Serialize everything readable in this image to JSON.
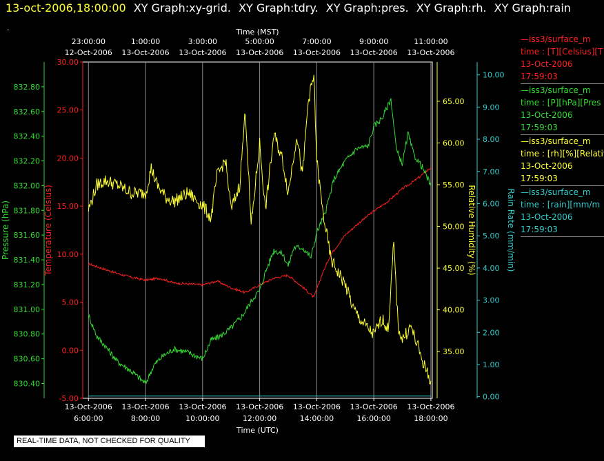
{
  "header": {
    "timestamp": "13-oct-2006,18:00:00",
    "graph_titles": [
      "XY Graph:xy-grid.",
      "XY Graph:tdry.",
      "XY Graph:pres.",
      "XY Graph:rh.",
      "XY Graph:rain"
    ],
    "dot": "."
  },
  "badge": {
    "text": "REAL-TIME DATA, NOT CHECKED FOR QUALITY"
  },
  "legend": [
    {
      "line1": "—iss3/surface_m",
      "line2": "time : [T][Celsius][T",
      "line3": "13-Oct-2006",
      "line4": "17:59:03",
      "color": "#ff2020"
    },
    {
      "line1": "—iss3/surface_m",
      "line2": "time : [P][hPa][Pres",
      "line3": "13-Oct-2006",
      "line4": "17:59:03",
      "color": "#33dd33"
    },
    {
      "line1": "—iss3/surface_m",
      "line2": "time : [rh][%][Relativ",
      "line3": "13-Oct-2006",
      "line4": "17:59:03",
      "color": "#ffff33"
    },
    {
      "line1": "—iss3/surface_m",
      "line2": "time : [rain][mm/m",
      "line3": "13-Oct-2006",
      "line4": "17:59:03",
      "color": "#33cccc"
    }
  ],
  "chart_data": {
    "type": "line",
    "x_unit": "UTC hour, 13-Oct-2006",
    "xlim": [
      5.8,
      18.05
    ],
    "top_axis": {
      "label": "Time (MST)",
      "ticks": [
        {
          "x": 6,
          "time": "23:00:00",
          "date": "12-Oct-2006"
        },
        {
          "x": 8,
          "time": "1:00:00",
          "date": "13-Oct-2006"
        },
        {
          "x": 10,
          "time": "3:00:00",
          "date": "13-Oct-2006"
        },
        {
          "x": 12,
          "time": "5:00:00",
          "date": "13-Oct-2006"
        },
        {
          "x": 14,
          "time": "7:00:00",
          "date": "13-Oct-2006"
        },
        {
          "x": 16,
          "time": "9:00:00",
          "date": "13-Oct-2006"
        },
        {
          "x": 18,
          "time": "11:00:00",
          "date": "13-Oct-2006"
        }
      ]
    },
    "bottom_axis": {
      "label": "Time (UTC)",
      "ticks": [
        {
          "x": 6,
          "date": "13-Oct-2006",
          "time": "6:00:00"
        },
        {
          "x": 8,
          "date": "13-Oct-2006",
          "time": "8:00:00"
        },
        {
          "x": 10,
          "date": "13-Oct-2006",
          "time": "10:00:00"
        },
        {
          "x": 12,
          "date": "13-Oct-2006",
          "time": "12:00:00"
        },
        {
          "x": 14,
          "date": "13-Oct-2006",
          "time": "14:00:00"
        },
        {
          "x": 16,
          "date": "13-Oct-2006",
          "time": "16:00:00"
        },
        {
          "x": 18,
          "date": "13-Oct-2006",
          "time": "18:00:00"
        }
      ]
    },
    "axes": {
      "pressure": {
        "label": "Pressure (hPa)",
        "color": "#33dd33",
        "ylim": [
          830.28,
          833.0
        ],
        "ticks": [
          "830.40",
          "830.60",
          "830.80",
          "831.00",
          "831.20",
          "831.40",
          "831.60",
          "831.80",
          "832.00",
          "832.20",
          "832.40",
          "832.60",
          "832.80"
        ]
      },
      "temperature": {
        "label": "Temperature (Celsius)",
        "color": "#ff2020",
        "ylim": [
          -5,
          30
        ],
        "ticks": [
          "-5.00",
          "0.00",
          "5.00",
          "10.00",
          "15.00",
          "20.00",
          "25.00",
          "30.00"
        ]
      },
      "humidity": {
        "label": "Relative Humidity (%)",
        "color": "#ffff33",
        "ylim": [
          29.4,
          69.7
        ],
        "ticks": [
          "35.00",
          "40.00",
          "45.00",
          "50.00",
          "55.00",
          "60.00",
          "65.00"
        ]
      },
      "rain": {
        "label": "Rain Rate (mm/min)",
        "color": "#33cccc",
        "ylim": [
          -0.05,
          10.4
        ],
        "ticks": [
          "0.00",
          "1.00",
          "2.00",
          "3.00",
          "4.00",
          "5.00",
          "6.00",
          "7.00",
          "8.00",
          "9.00",
          "10.00"
        ]
      }
    },
    "series": [
      {
        "name": "Temperature",
        "axis": "temperature",
        "color": "#ff2020",
        "x": [
          6.0,
          6.5,
          7.0,
          7.5,
          8.0,
          8.5,
          9.0,
          9.5,
          10.0,
          10.5,
          11.0,
          11.5,
          12.0,
          12.5,
          13.0,
          13.5,
          13.9,
          14.2,
          14.5,
          15.0,
          15.5,
          16.0,
          16.5,
          17.0,
          17.5,
          18.0
        ],
        "y": [
          9.0,
          8.5,
          8.0,
          7.6,
          7.3,
          7.5,
          7.0,
          6.9,
          6.8,
          7.2,
          6.5,
          6.0,
          6.8,
          7.5,
          7.8,
          6.6,
          5.5,
          8.0,
          10.0,
          12.0,
          13.3,
          14.5,
          15.5,
          16.8,
          17.8,
          19.0
        ]
      },
      {
        "name": "Pressure",
        "axis": "pressure",
        "color": "#33dd33",
        "x": [
          6.0,
          6.3,
          6.6,
          7.0,
          7.5,
          8.0,
          8.3,
          8.6,
          9.0,
          9.5,
          10.0,
          10.3,
          10.6,
          11.0,
          11.4,
          11.8,
          12.0,
          12.2,
          12.5,
          12.8,
          13.0,
          13.2,
          13.5,
          13.8,
          14.0,
          14.3,
          14.6,
          15.0,
          15.4,
          15.8,
          16.0,
          16.3,
          16.6,
          16.8,
          17.0,
          17.2,
          17.4,
          17.7,
          18.0
        ],
        "y": [
          830.95,
          830.78,
          830.7,
          830.58,
          830.5,
          830.4,
          830.55,
          830.62,
          830.68,
          830.65,
          830.6,
          830.75,
          830.78,
          830.85,
          830.95,
          831.1,
          831.15,
          831.3,
          831.48,
          831.45,
          831.35,
          831.5,
          831.5,
          831.42,
          831.62,
          831.78,
          832.05,
          832.2,
          832.3,
          832.32,
          832.48,
          832.55,
          832.7,
          832.28,
          832.18,
          832.42,
          832.25,
          832.15,
          832.0
        ]
      },
      {
        "name": "Relative Humidity",
        "axis": "humidity",
        "color": "#ffff33",
        "x": [
          6.0,
          6.3,
          6.6,
          7.0,
          7.5,
          8.0,
          8.2,
          8.4,
          8.7,
          9.0,
          9.5,
          10.0,
          10.3,
          10.5,
          10.8,
          11.0,
          11.3,
          11.5,
          11.7,
          12.0,
          12.2,
          12.5,
          12.8,
          13.0,
          13.3,
          13.5,
          13.7,
          13.9,
          14.0,
          14.2,
          14.5,
          15.0,
          15.3,
          15.6,
          16.0,
          16.3,
          16.5,
          16.7,
          16.85,
          17.0,
          17.3,
          17.6,
          17.8,
          18.0
        ],
        "y": [
          52.0,
          55.0,
          55.5,
          55.0,
          54.0,
          54.0,
          57.0,
          55.0,
          53.5,
          53.0,
          54.0,
          52.5,
          51.0,
          56.0,
          58.0,
          52.0,
          55.0,
          64.0,
          50.0,
          60.0,
          52.0,
          61.0,
          58.0,
          54.0,
          61.0,
          56.0,
          65.0,
          68.0,
          58.0,
          52.0,
          46.0,
          43.0,
          40.0,
          38.5,
          37.0,
          39.0,
          37.5,
          48.0,
          38.0,
          36.5,
          38.0,
          35.0,
          33.0,
          31.5
        ]
      },
      {
        "name": "Rain Rate",
        "axis": "rain",
        "color": "#33cccc",
        "x": [
          6.0,
          18.0
        ],
        "y": [
          0.02,
          0.02
        ]
      }
    ]
  }
}
